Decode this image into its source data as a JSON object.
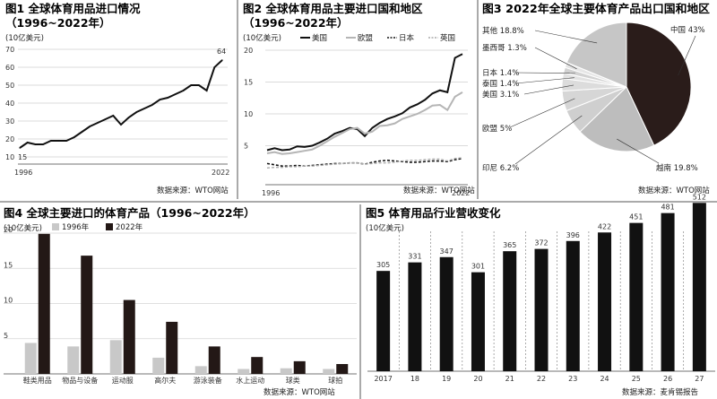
{
  "chart_data": [
    {
      "type": "line",
      "title": "图1 全球体育用品进口情况",
      "subtitle": "（1996~2022年）",
      "ylabel": "(10亿美元)",
      "ylim": [
        10,
        70
      ],
      "yticks": [
        10,
        20,
        30,
        40,
        50,
        60,
        70
      ],
      "x_ticks": [
        "1996",
        "2022"
      ],
      "x": [
        1996,
        1997,
        1998,
        1999,
        2000,
        2001,
        2002,
        2003,
        2004,
        2005,
        2006,
        2007,
        2008,
        2009,
        2010,
        2011,
        2012,
        2013,
        2014,
        2015,
        2016,
        2017,
        2018,
        2019,
        2020,
        2021,
        2022
      ],
      "values": [
        15,
        18,
        17,
        17,
        19,
        19,
        19,
        21,
        24,
        27,
        29,
        31,
        33,
        28,
        32,
        35,
        37,
        39,
        42,
        43,
        45,
        47,
        50,
        50,
        47,
        60,
        64
      ],
      "annotations": [
        {
          "x": 1996,
          "label": "15"
        },
        {
          "x": 2022,
          "label": "64"
        }
      ],
      "grid": true
    },
    {
      "type": "line",
      "title": "图2 全球体育用品主要进口国和地区",
      "subtitle": "（1996~2022年）",
      "ylabel": "(10亿美元)",
      "ylim": [
        0,
        20
      ],
      "yticks": [
        5,
        10,
        15,
        20
      ],
      "x_ticks": [
        "1996",
        "2022"
      ],
      "legend_position": "top",
      "x": [
        1996,
        1997,
        1998,
        1999,
        2000,
        2001,
        2002,
        2003,
        2004,
        2005,
        2006,
        2007,
        2008,
        2009,
        2010,
        2011,
        2012,
        2013,
        2014,
        2015,
        2016,
        2017,
        2018,
        2019,
        2020,
        2021,
        2022
      ],
      "series": [
        {
          "name": "美国",
          "style": "solid-black",
          "values": [
            4.3,
            4.6,
            4.3,
            4.4,
            4.9,
            4.8,
            5.0,
            5.5,
            6.1,
            6.9,
            7.3,
            7.8,
            7.6,
            6.5,
            7.8,
            8.6,
            9.2,
            9.6,
            10.1,
            11.0,
            11.5,
            12.2,
            13.2,
            13.7,
            13.4,
            18.8,
            19.4
          ]
        },
        {
          "name": "欧盟",
          "style": "solid-gray",
          "values": [
            3.8,
            4.0,
            3.7,
            3.8,
            4.0,
            4.2,
            4.4,
            5.0,
            5.7,
            6.4,
            7.0,
            7.6,
            7.8,
            6.9,
            7.2,
            8.1,
            8.2,
            8.5,
            9.2,
            9.6,
            10.0,
            10.6,
            11.3,
            11.4,
            10.6,
            12.7,
            13.4
          ]
        },
        {
          "name": "日本",
          "style": "dashed-black",
          "values": [
            2.2,
            2.0,
            1.8,
            1.8,
            1.9,
            1.8,
            1.9,
            2.0,
            2.1,
            2.2,
            2.2,
            2.3,
            2.3,
            2.1,
            2.4,
            2.6,
            2.7,
            2.6,
            2.5,
            2.4,
            2.4,
            2.5,
            2.6,
            2.6,
            2.5,
            2.8,
            3.0
          ]
        },
        {
          "name": "英国",
          "style": "dashed-gray",
          "values": [
            1.5,
            1.6,
            1.6,
            1.7,
            1.7,
            1.8,
            1.8,
            1.9,
            2.0,
            2.1,
            2.2,
            2.3,
            2.3,
            2.1,
            2.2,
            2.3,
            2.3,
            2.4,
            2.6,
            2.7,
            2.7,
            2.8,
            2.9,
            2.9,
            2.6,
            3.0,
            3.1
          ]
        }
      ],
      "grid": true
    },
    {
      "type": "pie",
      "title": "图3 2022年全球主要体育产品出口国和地区",
      "slices": [
        {
          "label": "中国",
          "value": 43,
          "text": "中国 43%",
          "color": "#2a1c1a"
        },
        {
          "label": "越南",
          "value": 19.8,
          "text": "越南 19.8%",
          "color": "#bdbdbd"
        },
        {
          "label": "印尼",
          "value": 6.2,
          "text": "印尼 6.2%",
          "color": "#cfcfcf"
        },
        {
          "label": "欧盟",
          "value": 5,
          "text": "欧盟 5%",
          "color": "#d6d6d6"
        },
        {
          "label": "美国",
          "value": 3.1,
          "text": "美国 3.1%",
          "color": "#dcdcdc"
        },
        {
          "label": "泰国",
          "value": 1.4,
          "text": "泰国 1.4%",
          "color": "#e2e2e2"
        },
        {
          "label": "日本",
          "value": 1.4,
          "text": "日本 1.4%",
          "color": "#d2d2d2"
        },
        {
          "label": "墨西哥",
          "value": 1.3,
          "text": "墨西哥 1.3%",
          "color": "#e6e6e6"
        },
        {
          "label": "其他",
          "value": 18.8,
          "text": "其他 18.8%",
          "color": "#c6c6c6"
        }
      ]
    },
    {
      "type": "bar",
      "title": "图4 全球主要进口的体育产品（1996~2022年）",
      "ylabel": "(10亿美元)",
      "ylim": [
        0,
        20
      ],
      "yticks": [
        5,
        10,
        15,
        20
      ],
      "legend_position": "top",
      "categories": [
        "鞋类用品",
        "物品与设备",
        "运动服",
        "高尔夫",
        "游泳装备",
        "水上运动",
        "球类",
        "球拍"
      ],
      "series": [
        {
          "name": "1996年",
          "color": "#c8c8c8",
          "values": [
            4.4,
            3.9,
            4.8,
            2.3,
            1.1,
            0.7,
            0.8,
            0.7
          ]
        },
        {
          "name": "2022年",
          "color": "#231816",
          "values": [
            19.9,
            16.8,
            10.5,
            7.4,
            3.9,
            2.4,
            1.8,
            1.4
          ]
        }
      ],
      "grid": true
    },
    {
      "type": "bar",
      "title": "图5 体育用品行业营收变化",
      "ylabel": "(10亿美元)",
      "categories": [
        "2017",
        "18",
        "19",
        "20",
        "21",
        "22",
        "23",
        "24",
        "25",
        "26",
        "27"
      ],
      "values": [
        305,
        331,
        347,
        301,
        365,
        372,
        396,
        422,
        451,
        481,
        512
      ],
      "ylim": [
        0,
        600
      ],
      "color": "#111111"
    }
  ],
  "sources": {
    "fig1_2": "数据来源：WTO网站",
    "fig3": "数据来源：WTO网站",
    "fig4": "数据来源：WTO网站",
    "fig5": "数据来源：麦肯锡报告"
  }
}
